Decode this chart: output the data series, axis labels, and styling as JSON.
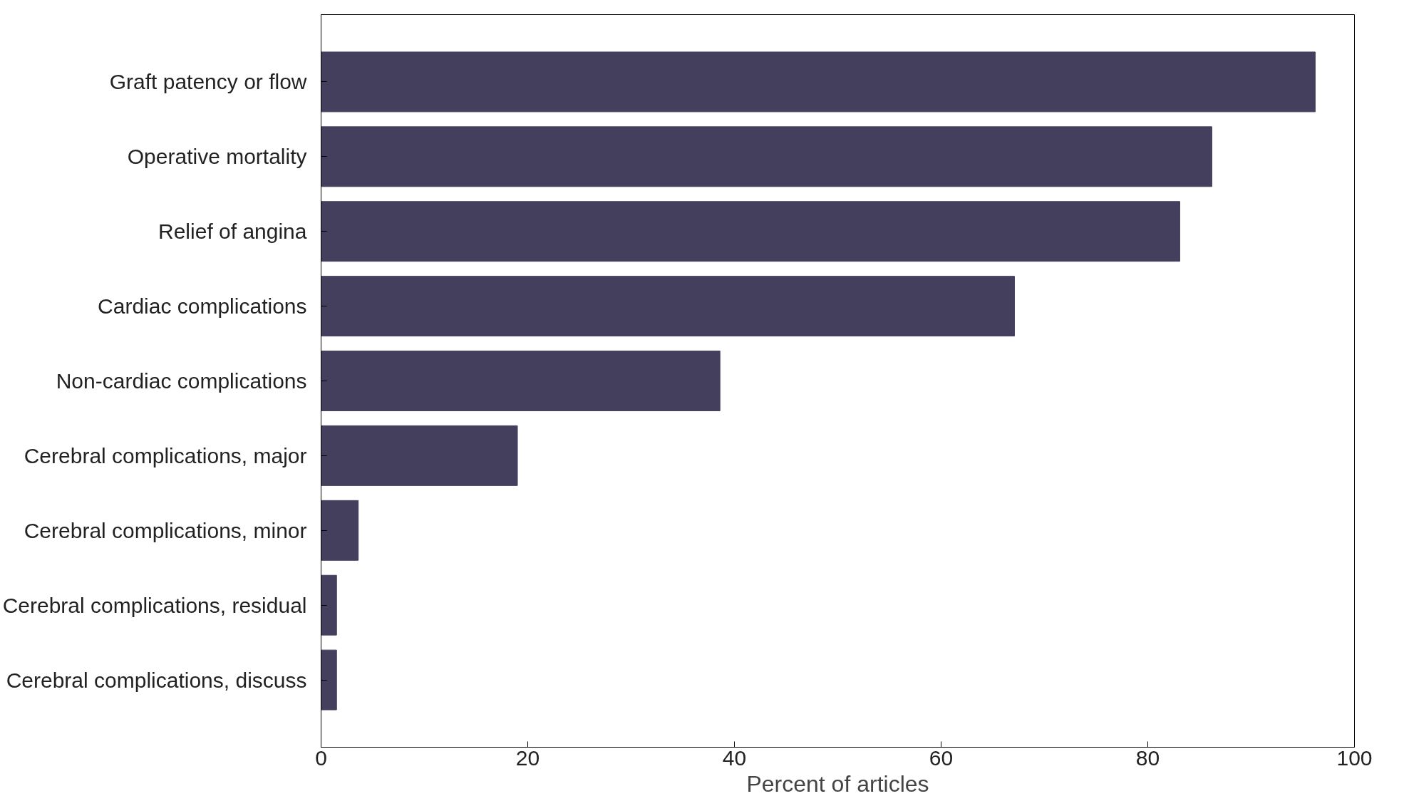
{
  "chart_data": {
    "type": "bar",
    "orientation": "horizontal",
    "xlabel": "Percent of articles",
    "categories": [
      "Graft patency or flow",
      "Operative mortality",
      "Relief of angina",
      "Cardiac complications",
      "Non-cardiac complications",
      "Cerebral complications, major",
      "Cerebral complications, minor",
      "Cerebral complications, residual",
      "Cerebral complications, discuss"
    ],
    "values": [
      96.2,
      86.2,
      83.1,
      67.1,
      38.6,
      19.0,
      3.6,
      1.5,
      1.5
    ],
    "color": "#453f5e",
    "xlim": [
      0,
      100
    ],
    "xticks": [
      0,
      20,
      40,
      60,
      80,
      100
    ],
    "grid": false
  }
}
